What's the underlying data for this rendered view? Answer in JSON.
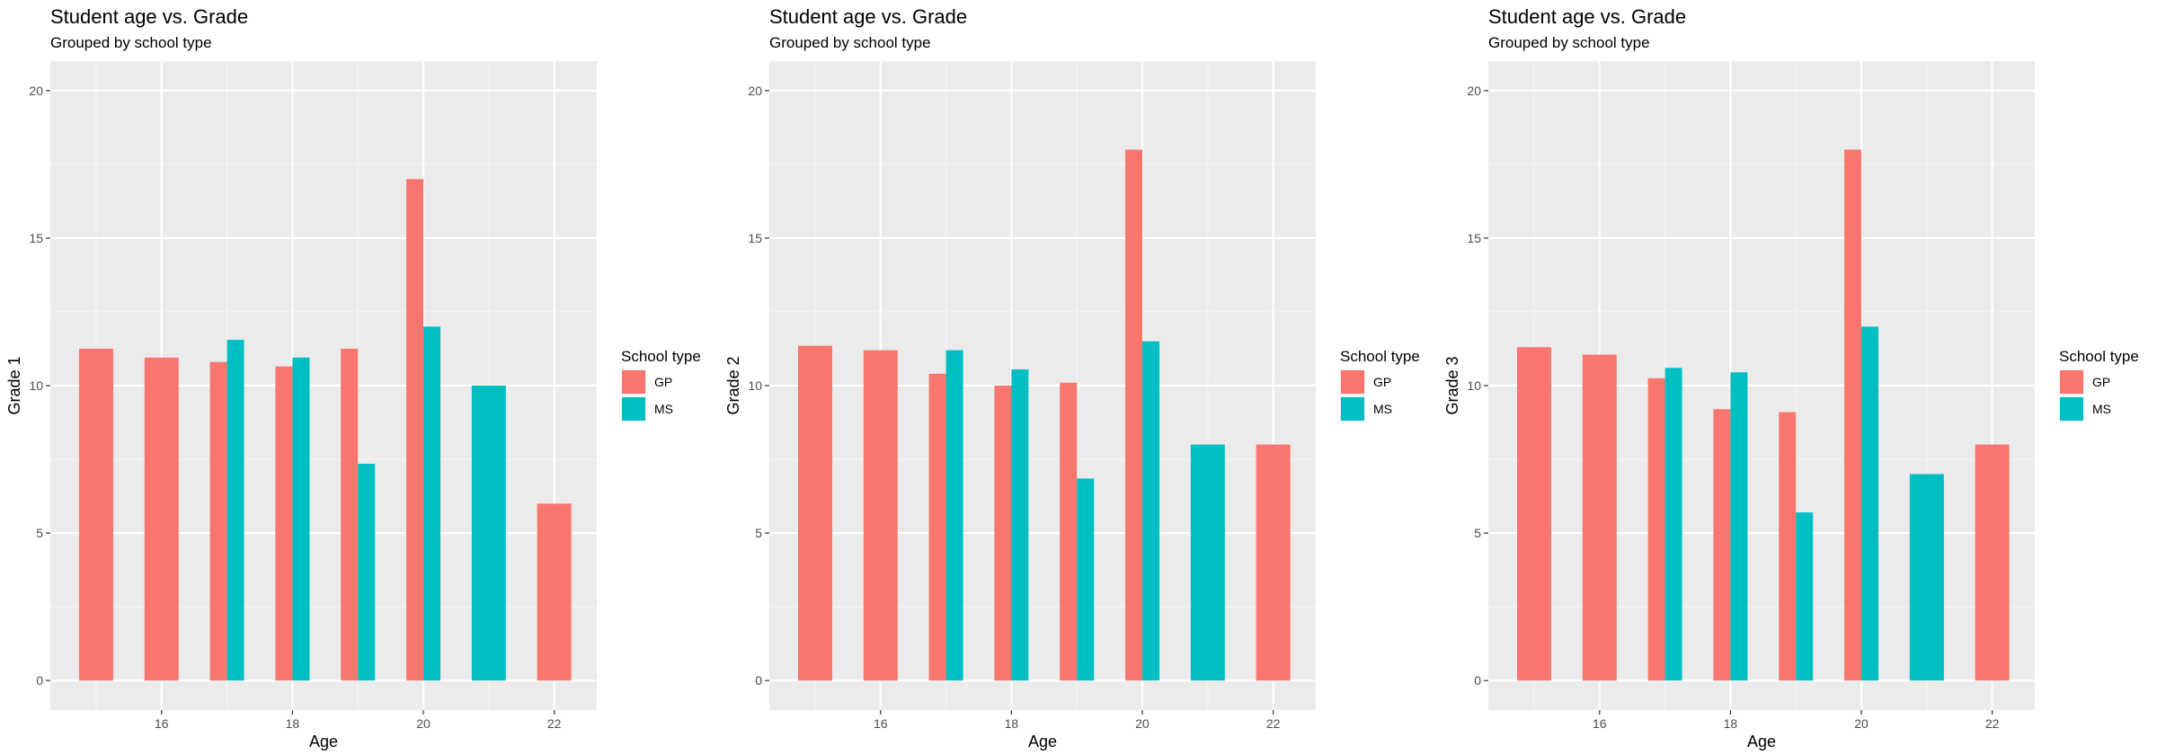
{
  "chart_data": [
    {
      "type": "bar",
      "title": "Student age vs. Grade",
      "subtitle": "Grouped by school type",
      "xlabel": "Age",
      "ylabel": "Grade 1",
      "xlim": [
        14.3,
        22.65
      ],
      "ylim": [
        -1,
        21
      ],
      "xticks": [
        "16",
        "18",
        "20",
        "22"
      ],
      "yticks": [
        "0",
        "5",
        "10",
        "15",
        "20"
      ],
      "grid": true,
      "legend_title": "School type",
      "legend_position": "right",
      "series": [
        {
          "name": "GP",
          "color": "#F8766D",
          "x": [
            15,
            16,
            17,
            18,
            19,
            20,
            22
          ],
          "values": [
            11.25,
            10.95,
            10.8,
            10.65,
            11.25,
            17.0,
            6.0
          ]
        },
        {
          "name": "MS",
          "color": "#00BFC4",
          "x": [
            17,
            18,
            19,
            20,
            21
          ],
          "values": [
            11.55,
            10.95,
            7.35,
            12.0,
            10.0
          ]
        }
      ]
    },
    {
      "type": "bar",
      "title": "Student age vs. Grade",
      "subtitle": "Grouped by school type",
      "xlabel": "Age",
      "ylabel": "Grade 2",
      "xlim": [
        14.3,
        22.65
      ],
      "ylim": [
        -1,
        21
      ],
      "xticks": [
        "16",
        "18",
        "20",
        "22"
      ],
      "yticks": [
        "0",
        "5",
        "10",
        "15",
        "20"
      ],
      "grid": true,
      "legend_title": "School type",
      "legend_position": "right",
      "series": [
        {
          "name": "GP",
          "color": "#F8766D",
          "x": [
            15,
            16,
            17,
            18,
            19,
            20,
            22
          ],
          "values": [
            11.35,
            11.2,
            10.4,
            10.0,
            10.1,
            18.0,
            8.0
          ]
        },
        {
          "name": "MS",
          "color": "#00BFC4",
          "x": [
            17,
            18,
            19,
            20,
            21
          ],
          "values": [
            11.2,
            10.55,
            6.85,
            11.5,
            8.0
          ]
        }
      ]
    },
    {
      "type": "bar",
      "title": "Student age vs. Grade",
      "subtitle": "Grouped by school type",
      "xlabel": "Age",
      "ylabel": "Grade 3",
      "xlim": [
        14.3,
        22.65
      ],
      "ylim": [
        -1,
        21
      ],
      "xticks": [
        "16",
        "18",
        "20",
        "22"
      ],
      "yticks": [
        "0",
        "5",
        "10",
        "15",
        "20"
      ],
      "grid": true,
      "legend_title": "School type",
      "legend_position": "right",
      "series": [
        {
          "name": "GP",
          "color": "#F8766D",
          "x": [
            15,
            16,
            17,
            18,
            19,
            20,
            22
          ],
          "values": [
            11.3,
            11.05,
            10.25,
            9.2,
            9.1,
            18.0,
            8.0
          ]
        },
        {
          "name": "MS",
          "color": "#00BFC4",
          "x": [
            17,
            18,
            19,
            20,
            21
          ],
          "values": [
            10.6,
            10.45,
            5.7,
            12.0,
            7.0
          ]
        }
      ]
    }
  ]
}
